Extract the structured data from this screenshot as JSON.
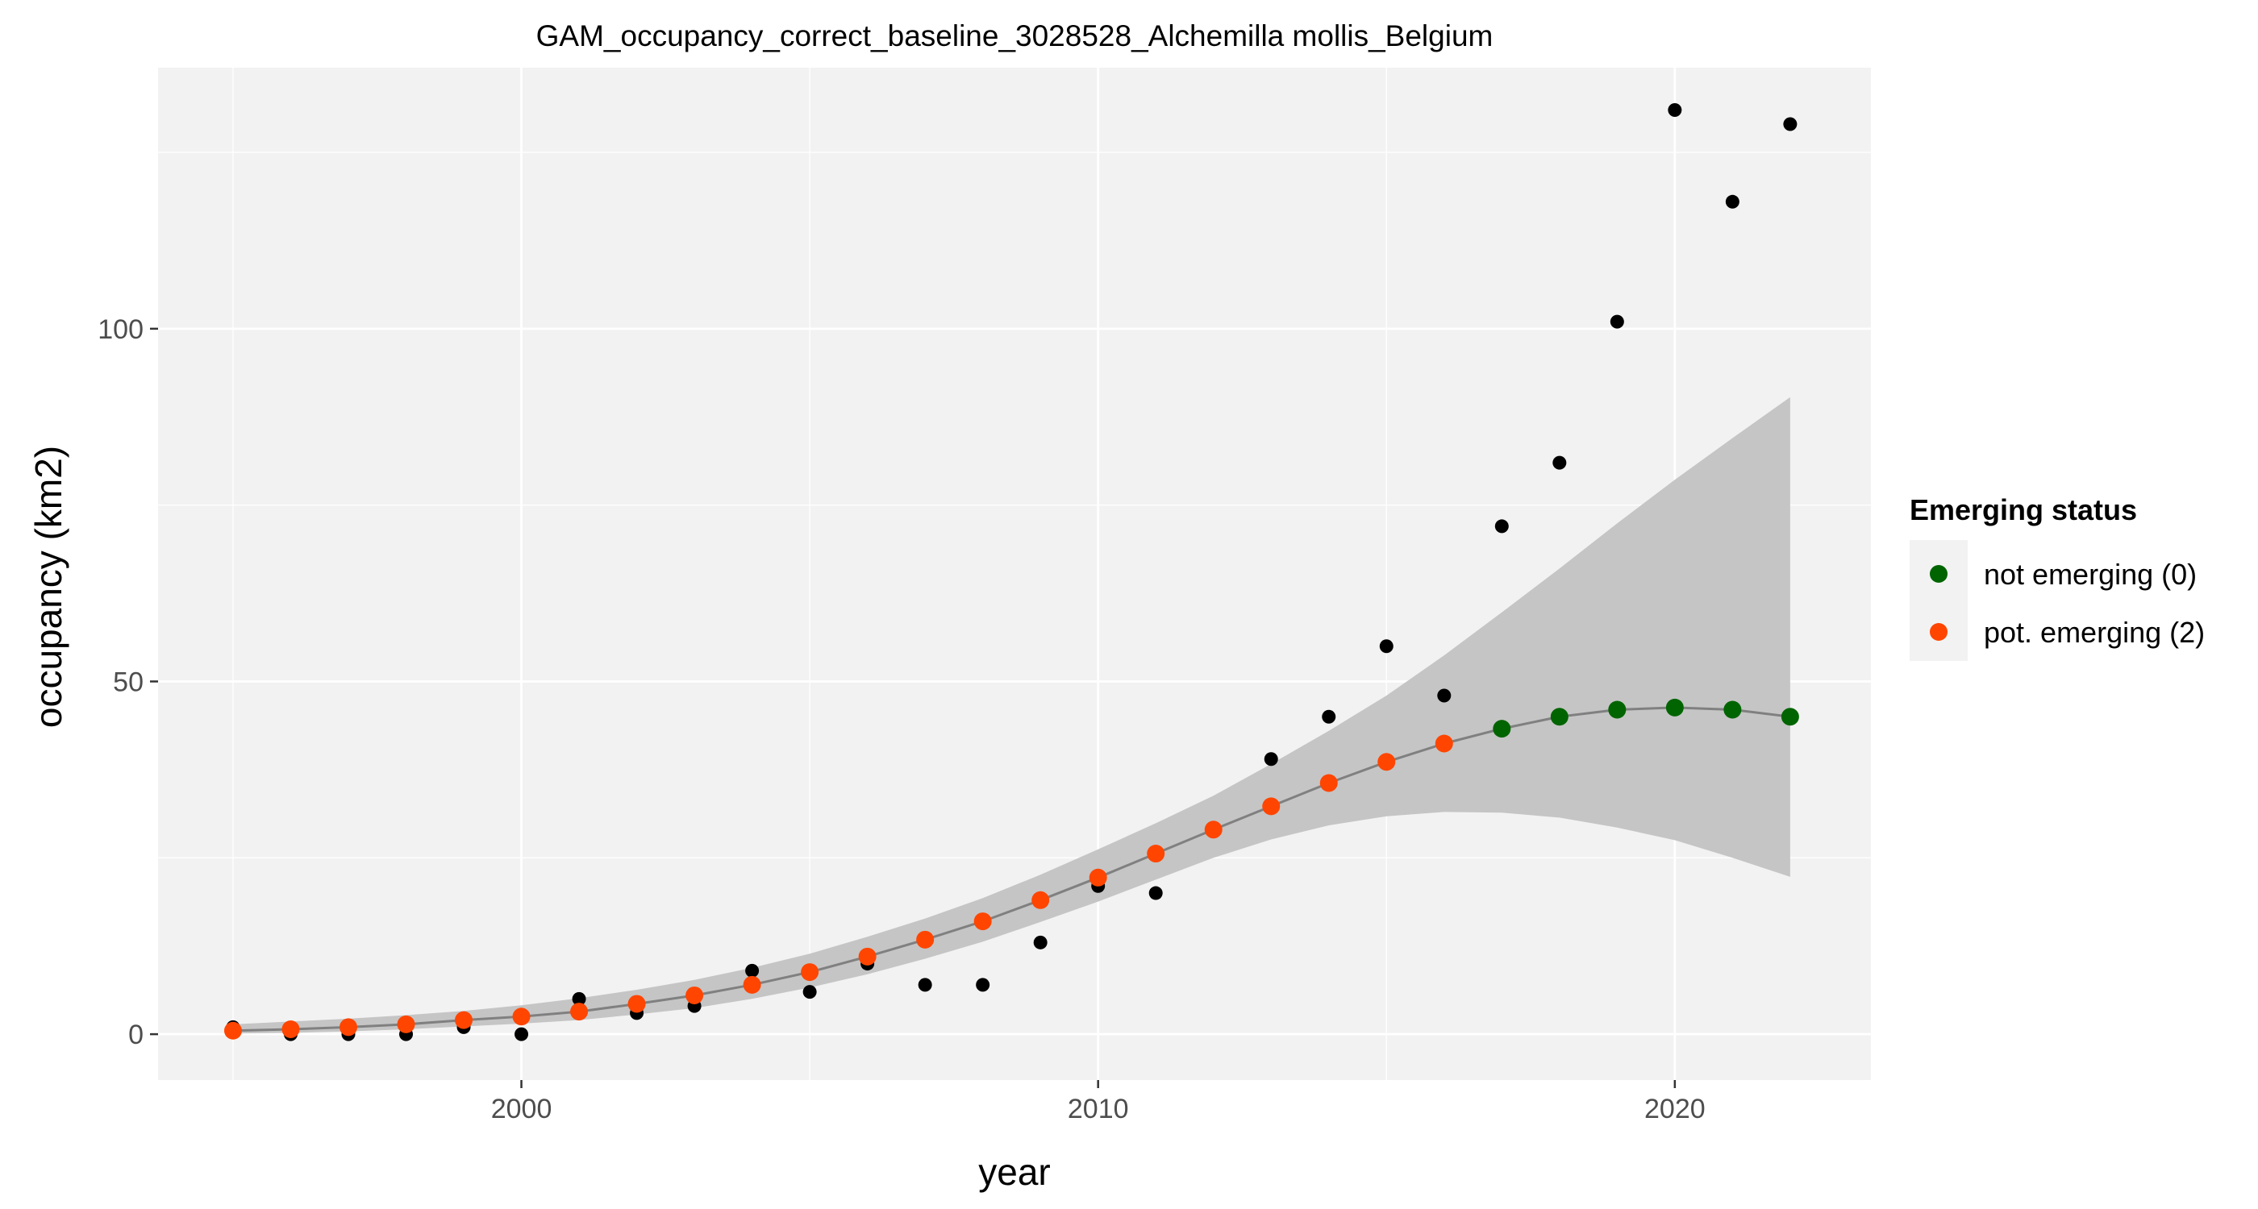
{
  "chart_data": {
    "type": "scatter",
    "title": "GAM_occupancy_correct_baseline_3028528_Alchemilla mollis_Belgium",
    "xlabel": "year",
    "ylabel": "occupancy (km2)",
    "xlim": [
      1993.7,
      2023.4
    ],
    "ylim": [
      -6.5,
      137
    ],
    "x_ticks": [
      2000,
      2010,
      2020
    ],
    "x_tick_labels": [
      "2000",
      "2010",
      "2020"
    ],
    "y_ticks": [
      0,
      50,
      100
    ],
    "y_tick_labels": [
      "0",
      "50",
      "100"
    ],
    "grid": true,
    "background": "#f2f2f2",
    "grid_color": "#ffffff",
    "legend": {
      "title": "Emerging status",
      "position": "right",
      "entries": [
        {
          "label": "not emerging (0)",
          "color": "#006400"
        },
        {
          "label": "pot. emerging (2)",
          "color": "#ff4500"
        }
      ]
    },
    "observed": {
      "color": "#000000",
      "x": [
        1995,
        1996,
        1997,
        1998,
        1999,
        2000,
        2001,
        2002,
        2003,
        2004,
        2005,
        2006,
        2007,
        2008,
        2009,
        2010,
        2011,
        2012,
        2013,
        2014,
        2015,
        2016,
        2017,
        2018,
        2019,
        2020,
        2021,
        2022
      ],
      "y": [
        1,
        0,
        0,
        0,
        1,
        0,
        5,
        3,
        4,
        9,
        6,
        10,
        7,
        7,
        13,
        21,
        20,
        29,
        39,
        45,
        55,
        48,
        72,
        81,
        101,
        131,
        118,
        129
      ]
    },
    "fitted": {
      "line_color": "#808080",
      "ribbon_color": "#c2c2c2",
      "x": [
        1995,
        1996,
        1997,
        1998,
        1999,
        2000,
        2001,
        2002,
        2003,
        2004,
        2005,
        2006,
        2007,
        2008,
        2009,
        2010,
        2011,
        2012,
        2013,
        2014,
        2015,
        2016,
        2017,
        2018,
        2019,
        2020,
        2021,
        2022
      ],
      "y": [
        0.5,
        0.7,
        1.0,
        1.4,
        2.0,
        2.5,
        3.2,
        4.3,
        5.5,
        7.0,
        8.8,
        11.0,
        13.4,
        16.0,
        19.0,
        22.2,
        25.6,
        29.0,
        32.3,
        35.6,
        38.6,
        41.2,
        43.3,
        45.0,
        46.0,
        46.3,
        46.0,
        45.0
      ],
      "lower": [
        0.1,
        0.2,
        0.4,
        0.7,
        1.1,
        1.5,
        2.0,
        2.8,
        3.7,
        5.0,
        6.6,
        8.5,
        10.7,
        13.1,
        15.9,
        18.8,
        21.9,
        25.0,
        27.6,
        29.6,
        30.9,
        31.5,
        31.4,
        30.7,
        29.3,
        27.5,
        25.0,
        22.3
      ],
      "upper": [
        1.4,
        1.8,
        2.2,
        2.7,
        3.3,
        4.1,
        5.1,
        6.3,
        7.7,
        9.4,
        11.4,
        13.8,
        16.4,
        19.3,
        22.6,
        26.2,
        29.9,
        33.8,
        38.3,
        43.0,
        48.0,
        53.7,
        59.8,
        66.0,
        72.4,
        78.6,
        84.5,
        90.3
      ],
      "status": [
        2,
        2,
        2,
        2,
        2,
        2,
        2,
        2,
        2,
        2,
        2,
        2,
        2,
        2,
        2,
        2,
        2,
        2,
        2,
        2,
        2,
        2,
        0,
        0,
        0,
        0,
        0,
        0
      ]
    }
  }
}
